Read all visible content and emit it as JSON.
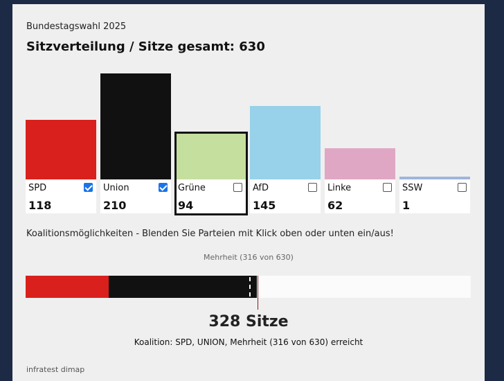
{
  "supertitle": "Bundestagswahl 2025",
  "title": "Sitzverteilung / Sitze gesamt: 630",
  "coalition_hint": "Koalitionsmöglichkeiten - Blenden Sie Parteien mit Klick oben oder unten ein/aus!",
  "majority_label": "Mehrheit (316 von 630)",
  "seat_total": "328 Sitze",
  "coalition_text": "Koalition: SPD, UNION, Mehrheit (316 von 630) erreicht",
  "source": "infratest dimap",
  "chart_data": {
    "type": "bar",
    "title": "Sitzverteilung / Sitze gesamt: 630",
    "categories": [
      "SPD",
      "Union",
      "Grüne",
      "AfD",
      "Linke",
      "SSW"
    ],
    "values": [
      118,
      210,
      94,
      145,
      62,
      1
    ],
    "colors": [
      "#d9201c",
      "#111111",
      "#c5df9f",
      "#97d1ea",
      "#e0a7c4",
      "#9fb5dc"
    ],
    "checked": [
      true,
      true,
      false,
      false,
      false,
      false
    ],
    "highlighted": [
      false,
      false,
      true,
      false,
      false,
      false
    ],
    "total_seats": 630,
    "majority": 316,
    "coalition_seats": 328,
    "coalition_parties": [
      "SPD",
      "Union"
    ]
  }
}
